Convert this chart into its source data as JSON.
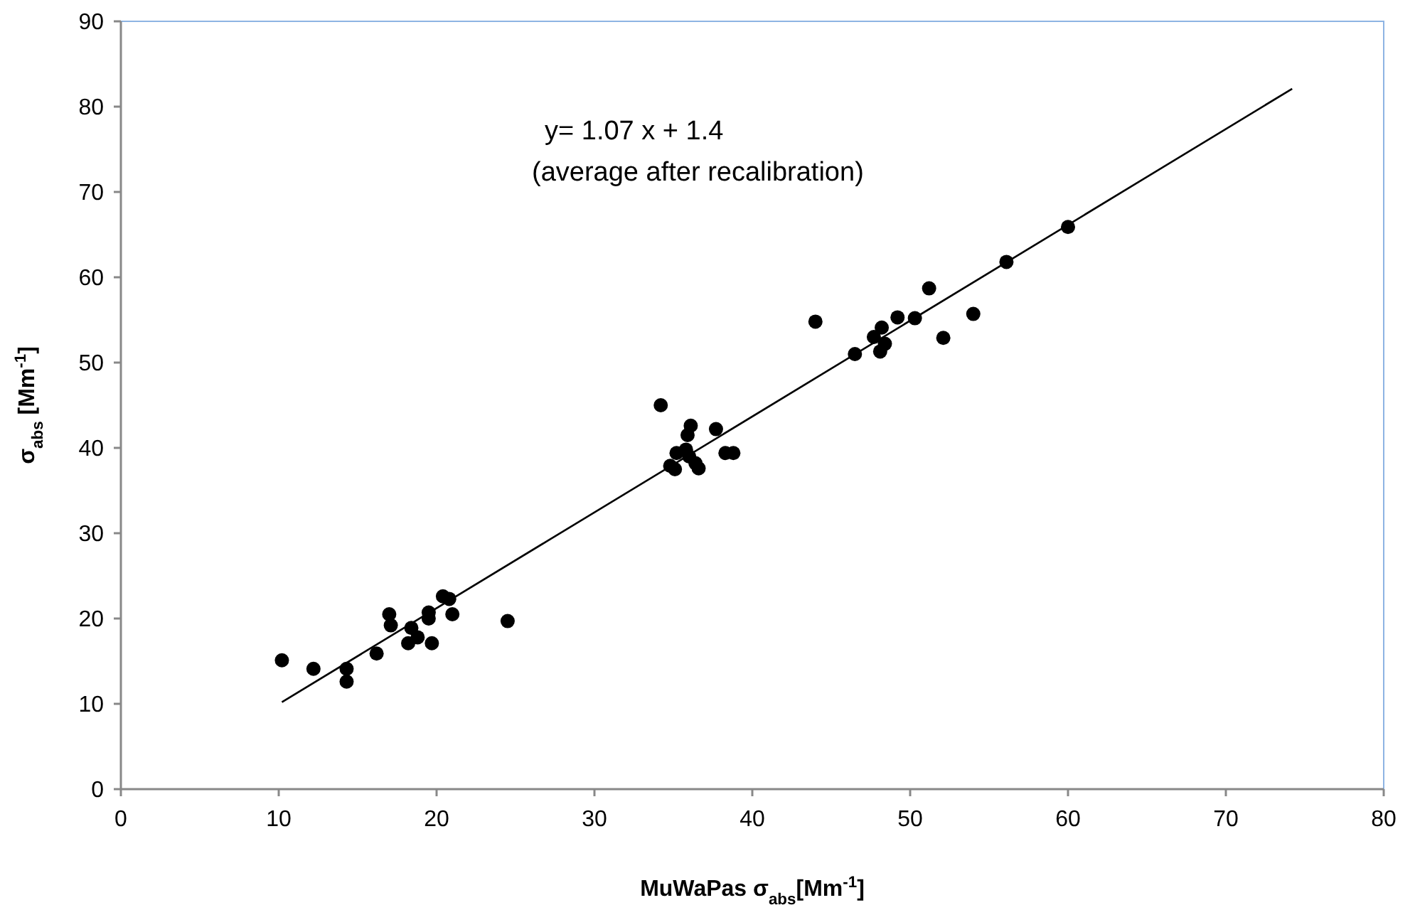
{
  "chart_data": {
    "type": "scatter",
    "xlabel": "MuWaPas σ$_{abs}$[Mm$^{-1}$]",
    "ylabel": "σ$_{abs}$ [Mm$^{-1}$]",
    "annotations": [
      "y= 1.07 x + 1.4",
      "(average after recalibration)"
    ],
    "xlim": [
      0,
      80
    ],
    "ylim": [
      0,
      90
    ],
    "xticks": [
      0,
      10,
      20,
      30,
      40,
      50,
      60,
      70,
      80
    ],
    "yticks": [
      0,
      10,
      20,
      30,
      40,
      50,
      60,
      70,
      80,
      90
    ],
    "grid": false,
    "series": [
      {
        "color": "#000000",
        "marker": "circle",
        "x": [
          10.2,
          12.2,
          14.3,
          14.3,
          16.2,
          17.0,
          17.1,
          18.2,
          18.4,
          18.8,
          19.5,
          19.5,
          19.7,
          20.4,
          20.8,
          21.0,
          24.5,
          34.2,
          34.8,
          35.1,
          35.2,
          35.8,
          35.9,
          36.1,
          36.0,
          36.4,
          36.6,
          37.7,
          38.3,
          38.8,
          44.0,
          46.5,
          47.7,
          48.2,
          48.1,
          48.4,
          49.2,
          50.3,
          51.2,
          52.1,
          54.0,
          56.1,
          60.0
        ],
        "values": [
          15.1,
          14.1,
          14.1,
          12.6,
          15.9,
          20.5,
          19.2,
          17.1,
          18.9,
          17.8,
          20.0,
          20.7,
          17.1,
          22.6,
          22.3,
          20.5,
          19.7,
          45.0,
          37.9,
          37.5,
          39.4,
          39.8,
          41.5,
          42.6,
          39.0,
          38.2,
          37.6,
          42.2,
          39.4,
          39.4,
          54.8,
          51.0,
          53.0,
          54.1,
          51.3,
          52.2,
          55.3,
          55.2,
          58.7,
          52.9,
          55.7,
          61.8,
          65.9
        ]
      },
      {
        "type": "line",
        "color": "#000000",
        "marker": "none",
        "x": [
          10.2,
          74.2
        ],
        "values": [
          10.2,
          82.1
        ]
      }
    ]
  }
}
